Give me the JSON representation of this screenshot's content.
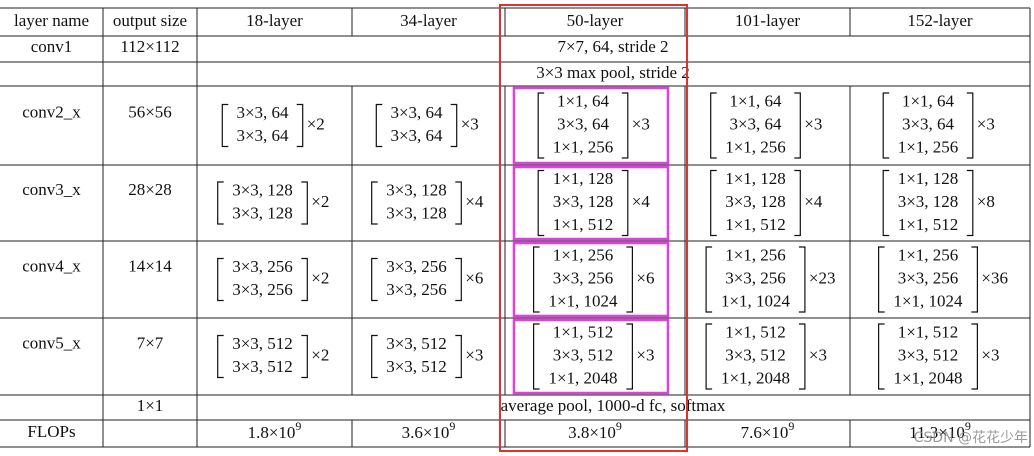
{
  "header": [
    "layer name",
    "output size",
    "18-layer",
    "34-layer",
    "50-layer",
    "101-layer",
    "152-layer"
  ],
  "conv1": {
    "name": "conv1",
    "output": "112×112",
    "spec": "7×7, 64, stride 2"
  },
  "pool": "3×3 max pool, stride 2",
  "stages": [
    {
      "name": "conv2_x",
      "output": "56×56",
      "blocks": [
        {
          "lines": [
            "3×3, 64",
            "3×3, 64"
          ],
          "repeat": "×2"
        },
        {
          "lines": [
            "3×3, 64",
            "3×3, 64"
          ],
          "repeat": "×3"
        },
        {
          "lines": [
            "1×1, 64",
            "3×3, 64",
            "1×1, 256"
          ],
          "repeat": "×3"
        },
        {
          "lines": [
            "1×1, 64",
            "3×3, 64",
            "1×1, 256"
          ],
          "repeat": "×3"
        },
        {
          "lines": [
            "1×1, 64",
            "3×3, 64",
            "1×1, 256"
          ],
          "repeat": "×3"
        }
      ]
    },
    {
      "name": "conv3_x",
      "output": "28×28",
      "blocks": [
        {
          "lines": [
            "3×3, 128",
            "3×3, 128"
          ],
          "repeat": "×2"
        },
        {
          "lines": [
            "3×3, 128",
            "3×3, 128"
          ],
          "repeat": "×4"
        },
        {
          "lines": [
            "1×1, 128",
            "3×3, 128",
            "1×1, 512"
          ],
          "repeat": "×4"
        },
        {
          "lines": [
            "1×1, 128",
            "3×3, 128",
            "1×1, 512"
          ],
          "repeat": "×4"
        },
        {
          "lines": [
            "1×1, 128",
            "3×3, 128",
            "1×1, 512"
          ],
          "repeat": "×8"
        }
      ]
    },
    {
      "name": "conv4_x",
      "output": "14×14",
      "blocks": [
        {
          "lines": [
            "3×3, 256",
            "3×3, 256"
          ],
          "repeat": "×2"
        },
        {
          "lines": [
            "3×3, 256",
            "3×3, 256"
          ],
          "repeat": "×6"
        },
        {
          "lines": [
            "1×1, 256",
            "3×3, 256",
            "1×1, 1024"
          ],
          "repeat": "×6"
        },
        {
          "lines": [
            "1×1, 256",
            "3×3, 256",
            "1×1, 1024"
          ],
          "repeat": "×23"
        },
        {
          "lines": [
            "1×1, 256",
            "3×3, 256",
            "1×1, 1024"
          ],
          "repeat": "×36"
        }
      ]
    },
    {
      "name": "conv5_x",
      "output": "7×7",
      "blocks": [
        {
          "lines": [
            "3×3, 512",
            "3×3, 512"
          ],
          "repeat": "×2"
        },
        {
          "lines": [
            "3×3, 512",
            "3×3, 512"
          ],
          "repeat": "×3"
        },
        {
          "lines": [
            "1×1, 512",
            "3×3, 512",
            "1×1, 2048"
          ],
          "repeat": "×3"
        },
        {
          "lines": [
            "1×1, 512",
            "3×3, 512",
            "1×1, 2048"
          ],
          "repeat": "×3"
        },
        {
          "lines": [
            "1×1, 512",
            "3×3, 512",
            "1×1, 2048"
          ],
          "repeat": "×3"
        }
      ]
    }
  ],
  "avgpool": {
    "output": "1×1",
    "spec": "average pool, 1000-d fc, softmax"
  },
  "flops": {
    "label": "FLOPs",
    "values": [
      {
        "base": "1.8×10",
        "exp": "9"
      },
      {
        "base": "3.6×10",
        "exp": "9"
      },
      {
        "base": "3.8×10",
        "exp": "9"
      },
      {
        "base": "7.6×10",
        "exp": "9"
      },
      {
        "base": "11.3×10",
        "exp": "9"
      }
    ]
  },
  "watermark": "CSDN @花花少年"
}
